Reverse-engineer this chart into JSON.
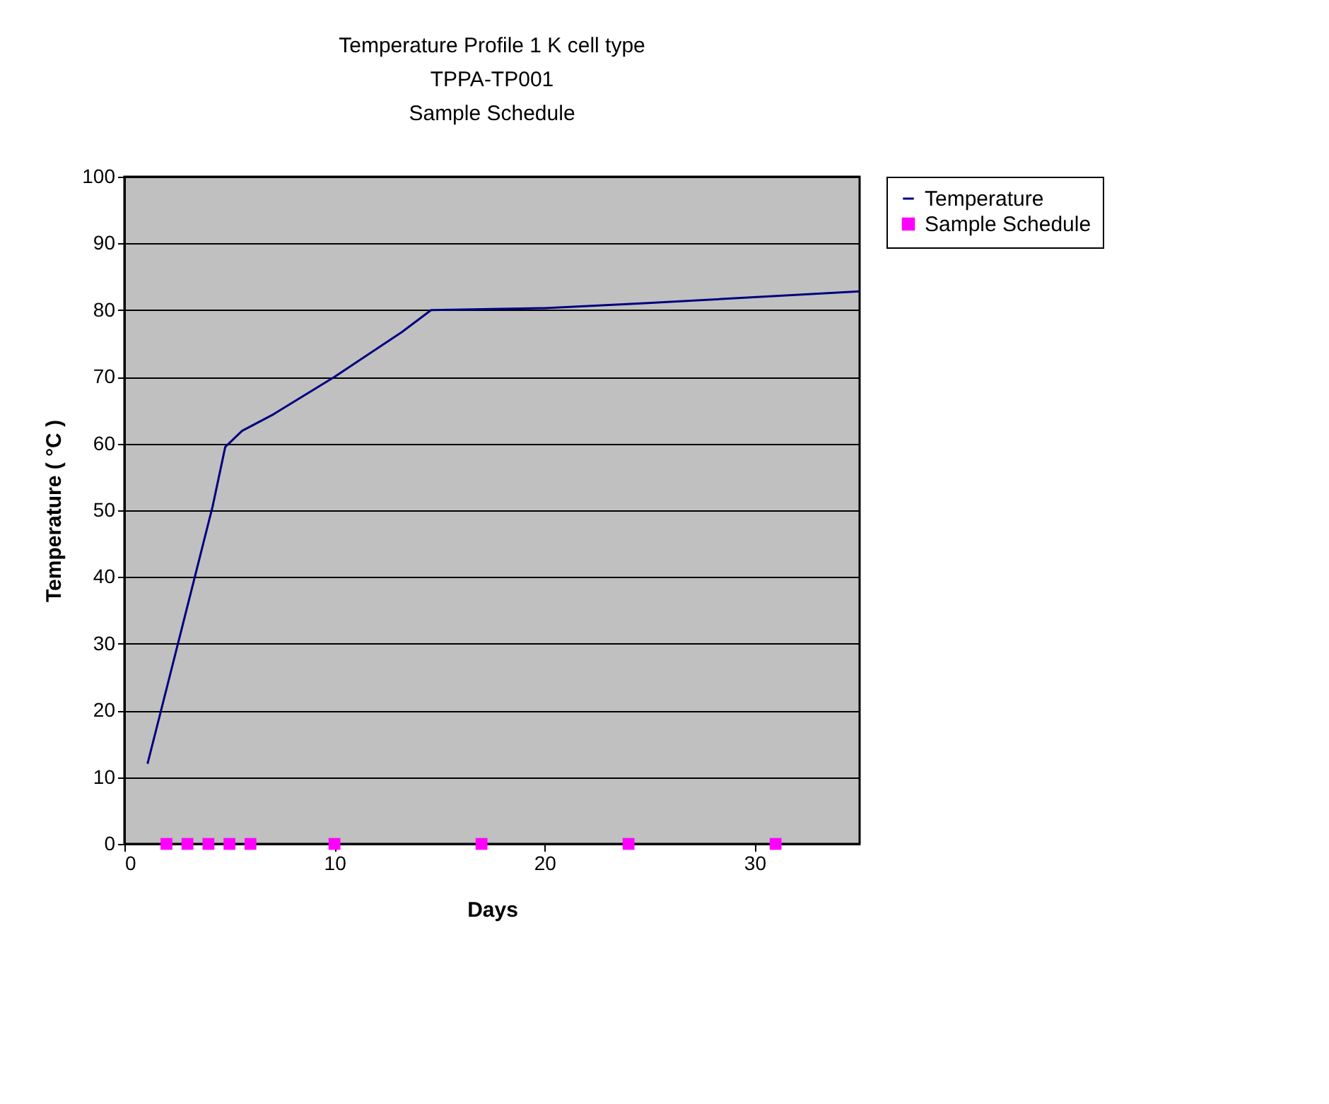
{
  "chart_data": {
    "type": "line",
    "title": "Temperature Profile 1 K cell type",
    "subtitle": "TPPA-TP001\nSample Schedule",
    "xlabel": "Days",
    "ylabel": "Temperature ( °C )",
    "series": [
      {
        "name": "Temperature",
        "color": "#000080",
        "marker": "none",
        "x": [
          1.1,
          2.5,
          4.2,
          4.8,
          5.6,
          7.1,
          10,
          13.2,
          14.6,
          20,
          24.6,
          35
        ],
        "values": [
          12,
          29.4,
          50.6,
          59.5,
          61.9,
          64.4,
          70,
          76.7,
          80,
          80.3,
          81,
          82.8
        ]
      },
      {
        "name": "Sample Schedule",
        "type": "scatter",
        "color": "#ff00ff",
        "marker": "square",
        "x": [
          2,
          3,
          4,
          5,
          6,
          10,
          17,
          24,
          31
        ],
        "values": [
          0,
          0,
          0,
          0,
          0,
          0,
          0,
          0,
          0
        ]
      }
    ],
    "xlim": [
      0,
      35
    ],
    "xticks": [
      0,
      10,
      20,
      30
    ],
    "ylim": [
      0,
      100
    ],
    "yticks": [
      0,
      10,
      20,
      30,
      40,
      50,
      60,
      70,
      80,
      90,
      100
    ],
    "grid": "y",
    "legend": "right"
  }
}
